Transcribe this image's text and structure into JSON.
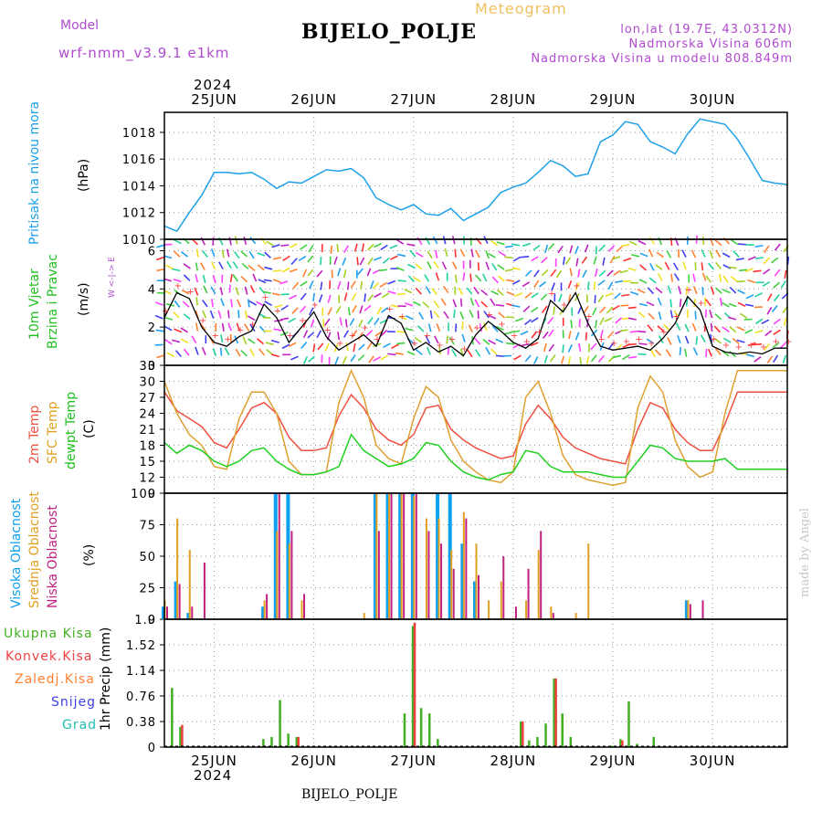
{
  "header": {
    "title": "BIJELO_POLJE",
    "top_label": "Meteogram",
    "model_label": "Model",
    "model_name": "wrf-nmm_v3.9.1  e1km",
    "lonlat": "lon,lat (19.7E, 43.0312N)",
    "altitude": "Nadmorska Visina 606m",
    "model_altitude": "Nadmorska Visina u modelu 808.849m",
    "footer_title": "BIJELO_POLJE",
    "watermark": "made by Angel"
  },
  "time_axis": {
    "year": "2024",
    "days": [
      "25JUN",
      "26JUN",
      "27JUN",
      "28JUN",
      "29JUN",
      "30JUN"
    ]
  },
  "panels": {
    "pressure": {
      "label": "Pritisak na nivou mora",
      "unit": "(hPa)"
    },
    "wind": {
      "label1": "10m Vjetar",
      "label2": "Brzina i Pravac",
      "unit": "(m/s)",
      "compass": "W <-|-> E"
    },
    "temp": {
      "label1": "2m Temp",
      "label2": "SFC Temp",
      "label3": "dewpt Temp",
      "unit": "(C)"
    },
    "cloud": {
      "label1": "Visoka Oblacnost",
      "label2": "Srednja Oblacnost",
      "label3": "Niska Oblacnost",
      "unit": "(%)"
    },
    "precip": {
      "unit": "1hr Precip (mm)",
      "legend": [
        "Ukupna Kisa",
        "Konvek.Kisa",
        "Zaledj.Kisa",
        "Snijeg",
        "Grad"
      ]
    }
  },
  "colors": {
    "pressure": "#1ea0e8",
    "wind_speed": "#000000",
    "wind_gust": "#ff4040",
    "t2m": "#f05040",
    "tsfc": "#dfa030",
    "dewpt": "#20d020",
    "cloud_high": "#10a0f0",
    "cloud_mid": "#e0a020",
    "cloud_low": "#c02080",
    "precip_total": "#40b020",
    "precip_conv": "#f04040",
    "precip_frz": "#ff8030",
    "precip_snow": "#4040e0",
    "precip_grad": "#20c0b0"
  },
  "chart_data": [
    {
      "type": "line",
      "title": "Pritisak na nivou mora",
      "ylabel": "(hPa)",
      "ylim": [
        1010,
        1019.5
      ],
      "yticks": [
        1010,
        1012,
        1014,
        1016,
        1018
      ],
      "x_hours": [
        0,
        3,
        6,
        9,
        12,
        15,
        18,
        21,
        24,
        27,
        30,
        33,
        36,
        39,
        42,
        45,
        48,
        51,
        54,
        57,
        60,
        63,
        66,
        69,
        72,
        75,
        78,
        81,
        84,
        87,
        90,
        93,
        96,
        99,
        102,
        105,
        108,
        111,
        114,
        117,
        120,
        123,
        126,
        129,
        132,
        135,
        138,
        141,
        144,
        147,
        150
      ],
      "series": [
        {
          "values": [
            1011.0,
            1010.6,
            1012.0,
            1013.3,
            1015.0,
            1015.0,
            1014.9,
            1015.0,
            1014.5,
            1013.8,
            1014.3,
            1014.2,
            1014.7,
            1015.2,
            1015.1,
            1015.3,
            1014.6,
            1013.1,
            1012.6,
            1012.2,
            1012.6,
            1011.9,
            1011.8,
            1012.3,
            1011.4,
            1011.9,
            1012.4,
            1013.5,
            1013.9,
            1014.2,
            1015.0,
            1015.9,
            1015.5,
            1014.7,
            1014.9,
            1017.3,
            1017.8,
            1018.8,
            1018.6,
            1017.3,
            1016.9,
            1016.4,
            1017.9,
            1019.0,
            1018.8,
            1018.6,
            1017.5,
            1016.0,
            1014.4,
            1014.2,
            1014.1
          ]
        }
      ]
    },
    {
      "type": "line",
      "title": "10m Vjetar Brzina i Pravac",
      "ylabel": "(m/s)",
      "ylim": [
        0,
        6.6
      ],
      "yticks": [
        0,
        2,
        4,
        6
      ],
      "x_hours": [
        0,
        3,
        6,
        9,
        12,
        15,
        18,
        21,
        24,
        27,
        30,
        33,
        36,
        39,
        42,
        45,
        48,
        51,
        54,
        57,
        60,
        63,
        66,
        69,
        72,
        75,
        78,
        81,
        84,
        87,
        90,
        93,
        96,
        99,
        102,
        105,
        108,
        111,
        114,
        117,
        120,
        123,
        126,
        129,
        132,
        135,
        138,
        141,
        144,
        147,
        150
      ],
      "series": [
        {
          "values": [
            2.5,
            3.8,
            3.5,
            2.0,
            1.2,
            1.0,
            1.5,
            1.8,
            3.2,
            2.5,
            1.2,
            2.0,
            2.8,
            1.5,
            0.8,
            1.2,
            1.6,
            1.0,
            2.6,
            2.2,
            0.8,
            1.2,
            0.7,
            1.0,
            0.5,
            1.6,
            2.3,
            1.8,
            1.2,
            0.9,
            1.4,
            3.4,
            2.8,
            3.8,
            2.2,
            1.0,
            0.8,
            0.9,
            1.0,
            0.8,
            1.4,
            2.2,
            3.6,
            2.9,
            1.0,
            0.7,
            0.6,
            0.7,
            0.6,
            0.9,
            0.9
          ]
        }
      ]
    },
    {
      "type": "line",
      "title": "2m Temp / SFC Temp / dewpt Temp",
      "ylabel": "(C)",
      "ylim": [
        9,
        33
      ],
      "yticks": [
        9,
        12,
        15,
        18,
        21,
        24,
        27,
        30,
        33
      ],
      "x_hours": [
        0,
        3,
        6,
        9,
        12,
        15,
        18,
        21,
        24,
        27,
        30,
        33,
        36,
        39,
        42,
        45,
        48,
        51,
        54,
        57,
        60,
        63,
        66,
        69,
        72,
        75,
        78,
        81,
        84,
        87,
        90,
        93,
        96,
        99,
        102,
        105,
        108,
        111,
        114,
        117,
        120,
        123,
        126,
        129,
        132,
        135,
        138,
        141,
        144,
        147,
        150
      ],
      "series": [
        {
          "name": "2m Temp",
          "values": [
            28.0,
            24.5,
            23.0,
            21.5,
            18.5,
            17.5,
            21.0,
            25.0,
            26.0,
            24.0,
            19.5,
            17.0,
            17.0,
            17.5,
            23.5,
            27.5,
            25.0,
            21.0,
            19.0,
            18.0,
            20.0,
            25.0,
            25.5,
            21.0,
            19.0,
            17.5,
            16.5,
            15.5,
            16.0,
            22.0,
            25.5,
            23.0,
            19.5,
            17.5,
            16.5,
            15.5,
            15.0,
            14.5,
            21.0,
            26.0,
            25.0,
            21.0,
            18.5,
            17.0,
            17.0,
            22.0,
            28.0,
            28.0,
            28.0,
            28.0,
            28.0
          ]
        },
        {
          "name": "SFC Temp",
          "values": [
            30.0,
            24.0,
            20.0,
            18.0,
            14.0,
            13.5,
            23.0,
            28.0,
            28.0,
            24.0,
            15.0,
            12.5,
            12.5,
            13.0,
            26.0,
            32.0,
            27.0,
            18.0,
            15.5,
            14.5,
            23.0,
            29.0,
            27.0,
            19.0,
            15.0,
            13.0,
            11.5,
            11.0,
            13.0,
            27.0,
            30.0,
            24.0,
            16.0,
            12.5,
            11.5,
            11.0,
            10.5,
            11.0,
            25.0,
            31.0,
            28.0,
            19.0,
            14.0,
            12.0,
            13.0,
            24.0,
            32.0,
            32.0,
            32.0,
            32.0,
            32.0
          ]
        },
        {
          "name": "dewpt Temp",
          "values": [
            18.5,
            16.5,
            18.0,
            17.0,
            15.0,
            14.0,
            15.0,
            17.0,
            17.5,
            15.0,
            13.5,
            12.5,
            12.5,
            13.0,
            14.0,
            20.0,
            17.0,
            15.5,
            14.0,
            14.5,
            15.5,
            18.5,
            18.0,
            15.0,
            13.0,
            12.0,
            11.5,
            12.5,
            13.0,
            17.0,
            16.5,
            14.0,
            13.0,
            13.0,
            13.0,
            12.5,
            12.0,
            12.0,
            15.0,
            18.0,
            17.5,
            15.5,
            15.0,
            15.0,
            15.0,
            15.5,
            13.5,
            13.5,
            13.5,
            13.5,
            13.5
          ]
        }
      ]
    },
    {
      "type": "bar",
      "title": "Visoka / Srednja / Niska Oblacnost",
      "ylabel": "(%)",
      "ylim": [
        0,
        100
      ],
      "yticks": [
        0,
        25,
        50,
        75,
        100
      ],
      "x_hours": [
        0,
        3,
        6,
        9,
        12,
        15,
        18,
        21,
        24,
        27,
        30,
        33,
        36,
        39,
        42,
        45,
        48,
        51,
        54,
        57,
        60,
        63,
        66,
        69,
        72,
        75,
        78,
        81,
        84,
        87,
        90,
        93,
        96,
        99,
        102,
        105,
        108,
        111,
        114,
        117,
        120,
        123,
        126,
        129,
        132,
        135,
        138,
        141,
        144,
        147,
        150
      ],
      "series": [
        {
          "name": "Visoka Oblacnost",
          "values": [
            10,
            30,
            5,
            0,
            0,
            0,
            0,
            0,
            10,
            100,
            100,
            0,
            0,
            0,
            0,
            0,
            0,
            100,
            100,
            100,
            100,
            0,
            100,
            100,
            60,
            30,
            0,
            0,
            0,
            0,
            0,
            0,
            0,
            0,
            0,
            0,
            0,
            0,
            0,
            0,
            0,
            0,
            15,
            0,
            0,
            0,
            0,
            0,
            0,
            0,
            0
          ]
        },
        {
          "name": "Srednja Oblacnost",
          "values": [
            15,
            80,
            55,
            0,
            0,
            0,
            0,
            0,
            15,
            70,
            60,
            15,
            0,
            0,
            0,
            0,
            5,
            100,
            100,
            100,
            98,
            80,
            80,
            55,
            85,
            60,
            15,
            30,
            0,
            15,
            55,
            10,
            0,
            5,
            60,
            0,
            0,
            0,
            0,
            0,
            0,
            0,
            15,
            0,
            0,
            0,
            0,
            0,
            0,
            0,
            0
          ]
        },
        {
          "name": "Niska Oblacnost",
          "values": [
            10,
            28,
            10,
            45,
            0,
            0,
            0,
            0,
            20,
            100,
            70,
            20,
            0,
            0,
            0,
            0,
            0,
            70,
            100,
            100,
            100,
            70,
            60,
            40,
            80,
            35,
            0,
            50,
            10,
            40,
            70,
            5,
            0,
            0,
            0,
            0,
            0,
            0,
            0,
            0,
            0,
            0,
            12,
            15,
            0,
            0,
            0,
            0,
            0,
            0,
            0
          ]
        }
      ]
    },
    {
      "type": "bar",
      "title": "1hr Precip",
      "ylabel": "1hr Precip (mm)",
      "ylim": [
        0,
        1.9
      ],
      "yticks": [
        0,
        0.38,
        0.76,
        1.14,
        1.52,
        1.9
      ],
      "x_hours": [
        0,
        2,
        4,
        6,
        8,
        10,
        12,
        14,
        16,
        18,
        20,
        22,
        24,
        26,
        28,
        30,
        32,
        34,
        36,
        38,
        40,
        42,
        44,
        46,
        48,
        50,
        52,
        54,
        56,
        58,
        60,
        62,
        64,
        66,
        68,
        70,
        72,
        74,
        76,
        78,
        80,
        82,
        84,
        86,
        88,
        90,
        92,
        94,
        96,
        98,
        100,
        102,
        104,
        106,
        108,
        110,
        112,
        114,
        116,
        118,
        120,
        122,
        124,
        126,
        128,
        130,
        132,
        134,
        136,
        138,
        140,
        142,
        144,
        146,
        148,
        150
      ],
      "series": [
        {
          "name": "Ukupna Kisa",
          "values": [
            0,
            0.88,
            0.3,
            0,
            0,
            0,
            0,
            0,
            0,
            0,
            0,
            0,
            0.12,
            0.15,
            0.7,
            0.2,
            0.15,
            0,
            0,
            0,
            0,
            0,
            0,
            0,
            0,
            0,
            0,
            0,
            0,
            0.5,
            1.8,
            0.58,
            0.5,
            0.12,
            0,
            0,
            0,
            0,
            0,
            0,
            0,
            0,
            0,
            0.38,
            0.1,
            0.15,
            0.35,
            1.02,
            0.5,
            0.15,
            0,
            0,
            0,
            0,
            0.02,
            0.12,
            0.68,
            0.05,
            0,
            0.15,
            0,
            0,
            0,
            0,
            0,
            0,
            0,
            0,
            0,
            0,
            0,
            0,
            0,
            0,
            0,
            0
          ]
        },
        {
          "name": "Konvek.Kisa",
          "values": [
            0,
            0,
            0.33,
            0,
            0,
            0,
            0,
            0,
            0,
            0,
            0,
            0,
            0,
            0,
            0,
            0,
            0.15,
            0,
            0,
            0,
            0,
            0,
            0,
            0,
            0,
            0,
            0,
            0,
            0,
            0,
            1.85,
            0,
            0,
            0,
            0,
            0,
            0,
            0,
            0,
            0,
            0,
            0,
            0,
            0.38,
            0,
            0,
            0,
            1.02,
            0,
            0,
            0,
            0,
            0,
            0,
            0,
            0.1,
            0,
            0,
            0,
            0,
            0,
            0,
            0,
            0,
            0,
            0,
            0,
            0,
            0,
            0,
            0,
            0,
            0,
            0,
            0,
            0
          ]
        }
      ]
    }
  ]
}
